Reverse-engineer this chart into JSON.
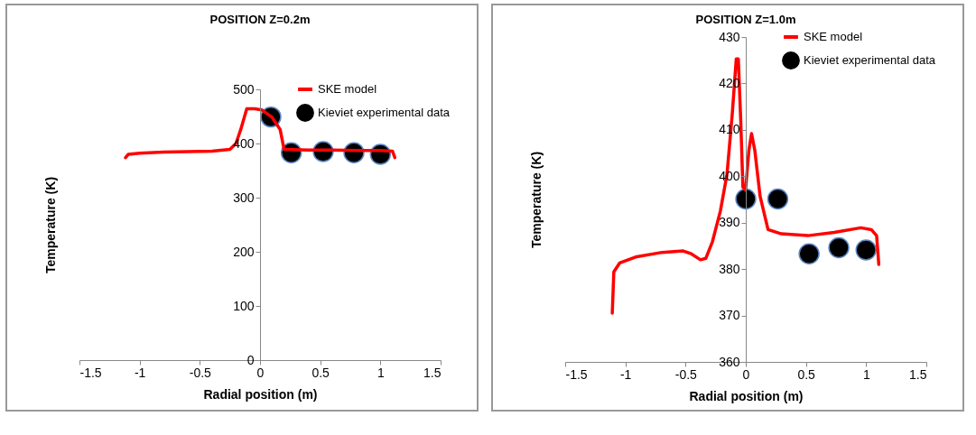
{
  "chart_data": [
    {
      "type": "line",
      "title": "POSITION Z=0.2m",
      "xlabel": "Radial position (m)",
      "ylabel": "Temperature (K)",
      "xlim": [
        -1.5,
        1.5
      ],
      "xticks": [
        -1.5,
        -1,
        -0.5,
        0,
        0.5,
        1,
        1.5
      ],
      "ylim": [
        0,
        500
      ],
      "yticks": [
        0,
        100,
        200,
        300,
        400,
        500
      ],
      "legend": "top right",
      "series": [
        {
          "name": "SKE model",
          "type": "line",
          "color": "#ff0000",
          "x": [
            -1.117,
            -1.094,
            -1.0,
            -0.8,
            -0.6,
            -0.4,
            -0.25,
            -0.2,
            -0.16,
            -0.11,
            -0.045,
            0.014,
            0.097,
            0.167,
            0.2,
            0.4,
            0.6,
            0.8,
            1.0,
            1.1,
            1.12
          ],
          "values": [
            374,
            380,
            382,
            384,
            385,
            386,
            389,
            400,
            426,
            464,
            464,
            462,
            449,
            426,
            389,
            388,
            388,
            387,
            387,
            386,
            374
          ]
        },
        {
          "name": "Kieviet experimental data",
          "type": "scatter",
          "marker": "circle",
          "color": "#000000",
          "x": [
            0.09,
            0.26,
            0.525,
            0.78,
            1.0
          ],
          "values": [
            449,
            383,
            385,
            383,
            380
          ]
        }
      ]
    },
    {
      "type": "line",
      "title": "POSITION Z=1.0m",
      "xlabel": "Radial position (m)",
      "ylabel": "Temperature (K)",
      "xlim": [
        -1.5,
        1.5
      ],
      "xticks": [
        -1.5,
        -1,
        -0.5,
        0,
        0.5,
        1,
        1.5
      ],
      "ylim": [
        360,
        430
      ],
      "yticks": [
        360,
        370,
        380,
        390,
        400,
        410,
        420,
        430
      ],
      "legend": "top right",
      "series": [
        {
          "name": "SKE model",
          "type": "line",
          "color": "#ff0000",
          "x": [
            -1.109,
            -1.096,
            -1.048,
            -0.916,
            -0.696,
            -0.52,
            -0.453,
            -0.376,
            -0.332,
            -0.277,
            -0.211,
            -0.156,
            -0.112,
            -0.079,
            -0.062,
            -0.042,
            -0.024,
            -0.002,
            0.026,
            0.048,
            0.075,
            0.119,
            0.185,
            0.295,
            0.515,
            0.735,
            0.955,
            1.043,
            1.087,
            1.105
          ],
          "values": [
            370.5,
            379.4,
            381.3,
            382.6,
            383.6,
            383.9,
            383.3,
            382,
            382.3,
            385.9,
            392.5,
            400.4,
            413.5,
            425.3,
            425.3,
            412.2,
            397.7,
            397,
            405.6,
            409.2,
            405.6,
            395.7,
            388.5,
            387.6,
            387.2,
            387.9,
            388.9,
            388.5,
            387.2,
            381
          ]
        },
        {
          "name": "Kieviet experimental data",
          "type": "scatter",
          "marker": "circle",
          "color": "#000000",
          "x": [
            0,
            0.266,
            0.526,
            0.773,
            0.999
          ],
          "values": [
            395.1,
            395.1,
            383.3,
            384.6,
            384.1
          ]
        }
      ]
    }
  ]
}
